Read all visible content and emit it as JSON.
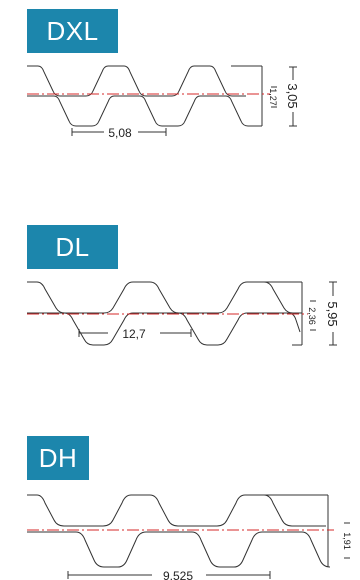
{
  "profiles": [
    {
      "name": "DXL",
      "pitch": "5,08",
      "height": "3,05",
      "tooth_height": "1,27"
    },
    {
      "name": "DL",
      "pitch": "12,7",
      "height": "5,95",
      "tooth_height": "2,36"
    },
    {
      "name": "DH",
      "pitch": "9,525",
      "height": "",
      "tooth_height": "1,91"
    }
  ],
  "colors": {
    "tag": "#1c86ac",
    "outline": "#333333",
    "pitch_line": "#d62828",
    "tag_text": "#ffffff"
  }
}
